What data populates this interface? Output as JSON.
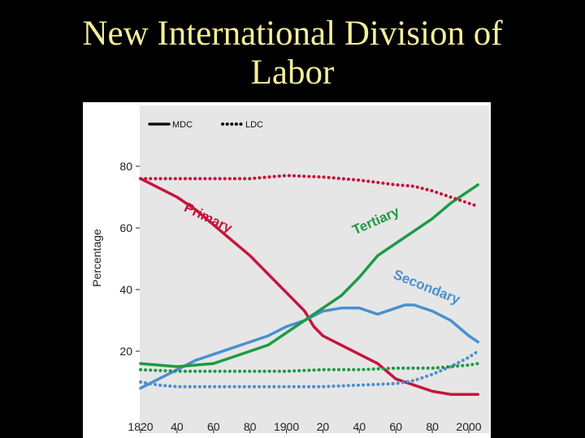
{
  "slide": {
    "title_line1": "New International Division of",
    "title_line2": "Labor",
    "title_color": "#f4ee9a",
    "background": "#000000"
  },
  "chart_data": {
    "type": "line",
    "title": "",
    "xlabel": "",
    "ylabel": "Percentage",
    "xlim": [
      1820,
      2010
    ],
    "ylim": [
      0,
      100
    ],
    "x_ticks": [
      1820,
      1840,
      1860,
      1880,
      1900,
      1920,
      1940,
      1960,
      1980,
      2000
    ],
    "x_tick_labels": [
      "1820",
      "40",
      "60",
      "80",
      "1900",
      "20",
      "40",
      "60",
      "80",
      "2000"
    ],
    "y_ticks": [
      20,
      40,
      60,
      80
    ],
    "y_tick_labels": [
      "20",
      "40",
      "60",
      "80"
    ],
    "grid": false,
    "legend": {
      "placement": "top-left",
      "entries": [
        {
          "label": "MDC",
          "style": "solid"
        },
        {
          "label": "LDC",
          "style": "dotted"
        }
      ]
    },
    "series": [
      {
        "group": "MDC",
        "sector": "Primary",
        "style": "solid",
        "color": "#c8143c",
        "points": [
          [
            1820,
            76
          ],
          [
            1830,
            73
          ],
          [
            1840,
            70
          ],
          [
            1850,
            66
          ],
          [
            1860,
            61
          ],
          [
            1870,
            56
          ],
          [
            1880,
            51
          ],
          [
            1890,
            45
          ],
          [
            1900,
            39
          ],
          [
            1910,
            33
          ],
          [
            1915,
            28
          ],
          [
            1920,
            25
          ],
          [
            1930,
            22
          ],
          [
            1940,
            19
          ],
          [
            1950,
            16
          ],
          [
            1960,
            11
          ],
          [
            1970,
            9
          ],
          [
            1980,
            7
          ],
          [
            1990,
            6
          ],
          [
            2000,
            6
          ],
          [
            2005,
            6
          ]
        ]
      },
      {
        "group": "MDC",
        "sector": "Secondary",
        "style": "solid",
        "color": "#4a90d0",
        "points": [
          [
            1820,
            8
          ],
          [
            1830,
            11
          ],
          [
            1840,
            14
          ],
          [
            1850,
            17
          ],
          [
            1860,
            19
          ],
          [
            1870,
            21
          ],
          [
            1880,
            23
          ],
          [
            1890,
            25
          ],
          [
            1900,
            28
          ],
          [
            1910,
            30
          ],
          [
            1920,
            33
          ],
          [
            1930,
            34
          ],
          [
            1940,
            34
          ],
          [
            1950,
            32
          ],
          [
            1960,
            34
          ],
          [
            1965,
            35
          ],
          [
            1970,
            35
          ],
          [
            1980,
            33
          ],
          [
            1990,
            30
          ],
          [
            2000,
            25
          ],
          [
            2005,
            23
          ]
        ]
      },
      {
        "group": "MDC",
        "sector": "Tertiary",
        "style": "solid",
        "color": "#1e9a44",
        "points": [
          [
            1820,
            16
          ],
          [
            1830,
            15.5
          ],
          [
            1840,
            15
          ],
          [
            1850,
            15.5
          ],
          [
            1860,
            16
          ],
          [
            1870,
            18
          ],
          [
            1880,
            20
          ],
          [
            1890,
            22
          ],
          [
            1900,
            26
          ],
          [
            1910,
            30
          ],
          [
            1920,
            34
          ],
          [
            1930,
            38
          ],
          [
            1940,
            44
          ],
          [
            1950,
            51
          ],
          [
            1960,
            55
          ],
          [
            1970,
            59
          ],
          [
            1980,
            63
          ],
          [
            1990,
            68
          ],
          [
            2000,
            72
          ],
          [
            2005,
            74
          ]
        ]
      },
      {
        "group": "LDC",
        "sector": "Primary",
        "style": "dotted",
        "color": "#c8143c",
        "points": [
          [
            1820,
            76
          ],
          [
            1840,
            76
          ],
          [
            1860,
            76
          ],
          [
            1880,
            76
          ],
          [
            1890,
            76.5
          ],
          [
            1900,
            77
          ],
          [
            1920,
            76.5
          ],
          [
            1940,
            75.5
          ],
          [
            1960,
            74
          ],
          [
            1970,
            73.5
          ],
          [
            1980,
            72
          ],
          [
            1990,
            70
          ],
          [
            2000,
            68
          ],
          [
            2005,
            67
          ]
        ]
      },
      {
        "group": "LDC",
        "sector": "Secondary",
        "style": "dotted",
        "color": "#4a90d0",
        "points": [
          [
            1820,
            10
          ],
          [
            1830,
            9
          ],
          [
            1840,
            8.5
          ],
          [
            1860,
            8.5
          ],
          [
            1880,
            8.5
          ],
          [
            1900,
            8.5
          ],
          [
            1920,
            8.5
          ],
          [
            1940,
            9
          ],
          [
            1960,
            9.5
          ],
          [
            1970,
            10.5
          ],
          [
            1980,
            12.5
          ],
          [
            1990,
            15
          ],
          [
            2000,
            18
          ],
          [
            2005,
            20
          ]
        ]
      },
      {
        "group": "LDC",
        "sector": "Tertiary",
        "style": "dotted",
        "color": "#1e9a44",
        "points": [
          [
            1820,
            14
          ],
          [
            1840,
            13.5
          ],
          [
            1860,
            13.5
          ],
          [
            1880,
            13.5
          ],
          [
            1900,
            13.5
          ],
          [
            1920,
            14
          ],
          [
            1940,
            14
          ],
          [
            1960,
            14.5
          ],
          [
            1980,
            14.5
          ],
          [
            1990,
            15
          ],
          [
            2000,
            15.5
          ],
          [
            2005,
            16
          ]
        ]
      }
    ],
    "annotations": [
      {
        "text": "Primary",
        "color": "#c8143c",
        "anchor_x": 1856,
        "anchor_y": 62,
        "rotate": 26
      },
      {
        "text": "Tertiary",
        "color": "#1e9a44",
        "anchor_x": 1950,
        "anchor_y": 61,
        "rotate": -24
      },
      {
        "text": "Secondary",
        "color": "#4a90d0",
        "anchor_x": 1976,
        "anchor_y": 39.5,
        "rotate": 22
      }
    ]
  }
}
